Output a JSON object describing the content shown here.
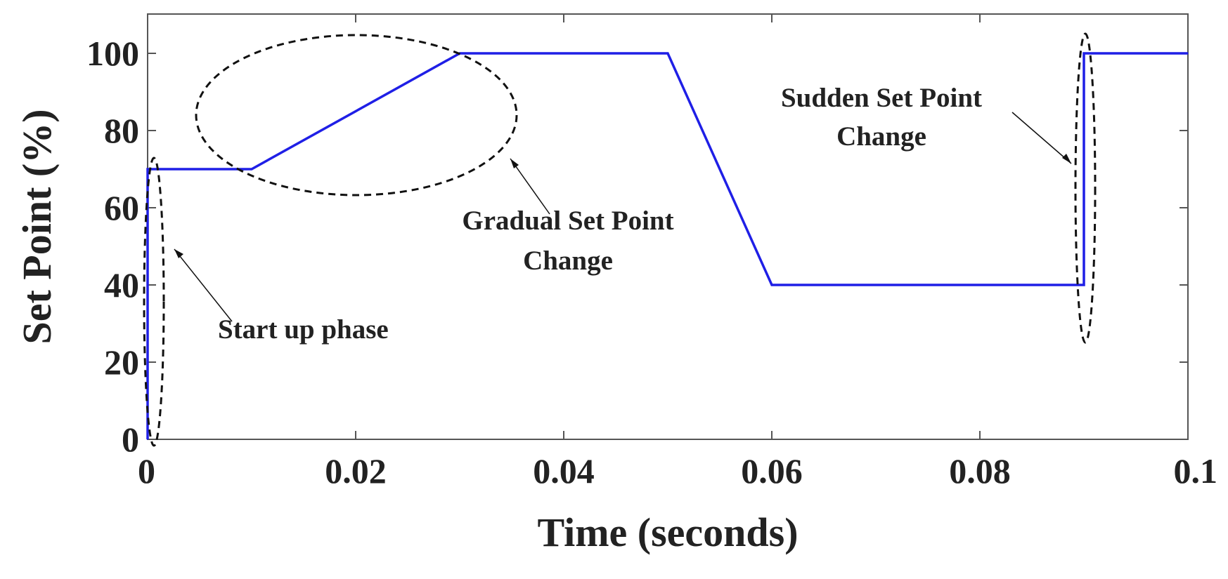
{
  "chart_data": {
    "type": "line",
    "title": "",
    "xlabel": "Time (seconds)",
    "ylabel": "Set Point (%)",
    "xlim": [
      0,
      0.1
    ],
    "ylim": [
      0,
      100
    ],
    "xticks": [
      0,
      0.02,
      0.04,
      0.06,
      0.08,
      0.1
    ],
    "xtick_labels": [
      "0",
      "0.02",
      "0.04",
      "0.06",
      "0.08",
      "0.1"
    ],
    "yticks": [
      0,
      20,
      40,
      60,
      80,
      100
    ],
    "ytick_labels": [
      "0",
      "20",
      "40",
      "60",
      "80",
      "100"
    ],
    "grid": false,
    "series": [
      {
        "color": "#1f1fe6",
        "x": [
          0,
          0,
          0.01,
          0.03,
          0.05,
          0.06,
          0.09,
          0.09,
          0.1
        ],
        "y": [
          0,
          70,
          70,
          100,
          100,
          40,
          40,
          100,
          100
        ]
      }
    ],
    "annotations": [
      {
        "id": "startup",
        "lines": [
          "Start up phase"
        ]
      },
      {
        "id": "gradual",
        "lines": [
          "Gradual Set Point",
          "Change"
        ]
      },
      {
        "id": "sudden",
        "lines": [
          "Sudden Set Point",
          "Change"
        ]
      }
    ]
  }
}
